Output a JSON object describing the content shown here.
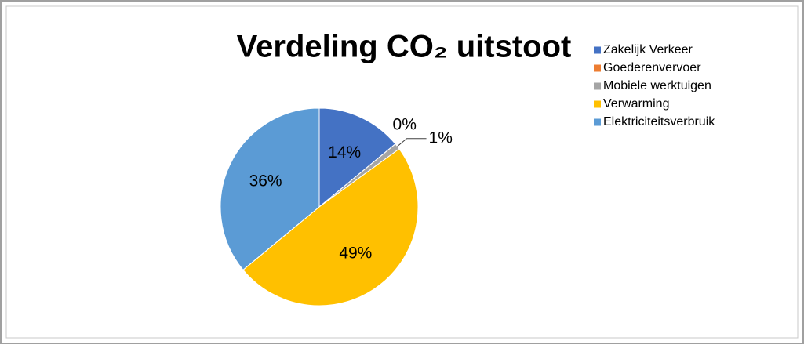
{
  "chart_data": {
    "type": "pie",
    "title": "Verdeling CO₂ uitstoot",
    "categories": [
      "Zakelijk Verkeer",
      "Goederenvervoer",
      "Mobiele werktuigen",
      "Verwarming",
      "Elektriciteitsverbruik"
    ],
    "values": [
      14,
      0,
      1,
      49,
      36
    ],
    "value_labels": [
      "14%",
      "0%",
      "1%",
      "49%",
      "36%"
    ],
    "colors": [
      "#4472c4",
      "#ed7d31",
      "#a5a5a5",
      "#ffc000",
      "#5b9bd5"
    ],
    "legend": "top-right"
  }
}
